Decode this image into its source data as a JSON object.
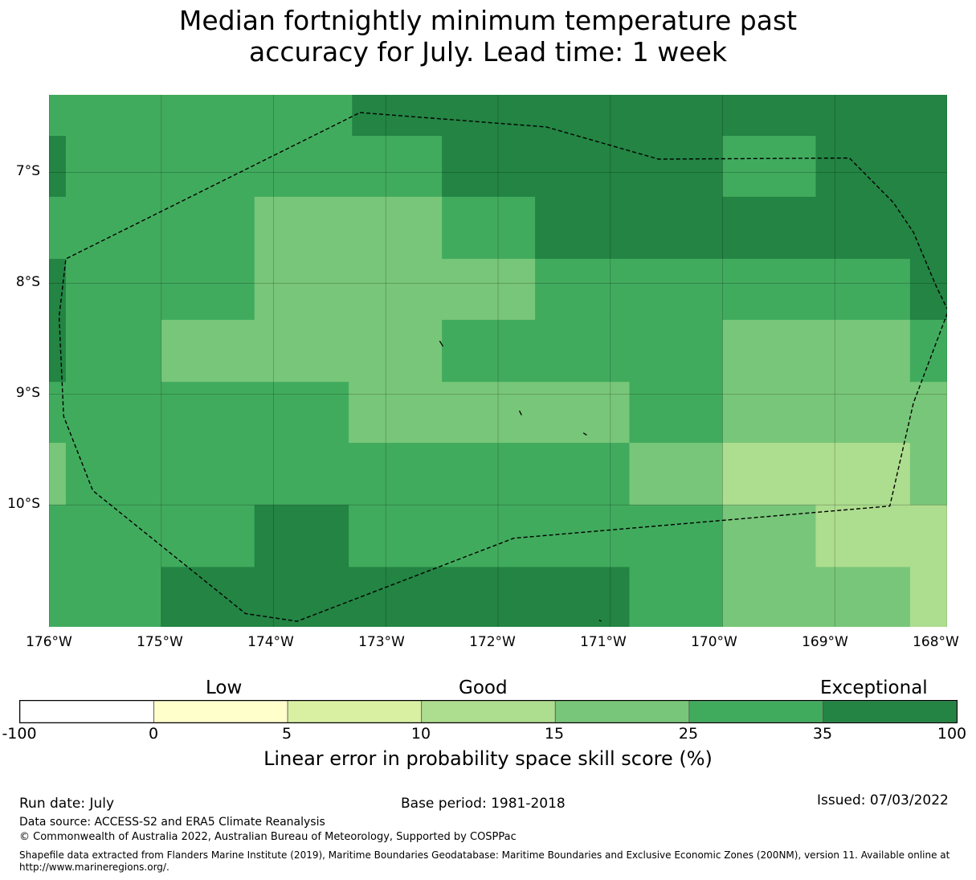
{
  "title_lines": [
    "Median fortnightly minimum temperature past",
    "accuracy for July. Lead time: 1 week"
  ],
  "map": {
    "lat_ticks": [
      {
        "value": -7,
        "label": "7°S"
      },
      {
        "value": -8,
        "label": "8°S"
      },
      {
        "value": -9,
        "label": "9°S"
      },
      {
        "value": -10,
        "label": "10°S"
      }
    ],
    "lon_ticks": [
      {
        "value": -176,
        "label": "176°W"
      },
      {
        "value": -175,
        "label": "175°W"
      },
      {
        "value": -174,
        "label": "174°W"
      },
      {
        "value": -173,
        "label": "173°W"
      },
      {
        "value": -172,
        "label": "172°W"
      },
      {
        "value": -171,
        "label": "171°W"
      },
      {
        "value": -170,
        "label": "170°W"
      },
      {
        "value": -169,
        "label": "169°W"
      },
      {
        "value": -168,
        "label": "168°W"
      }
    ],
    "lon_range": [
      -176,
      -168
    ],
    "lat_range": [
      -11.1,
      -6.3
    ],
    "grid": true,
    "boundary_style": "dashed",
    "cells": [
      {
        "lon": [
          -176,
          -173.3
        ],
        "lat": [
          -6.3,
          -6.67
        ],
        "cat": 5
      },
      {
        "lon": [
          -173.3,
          -176
        ],
        "lat": [
          -6.3,
          -6.3
        ],
        "cat": 5
      },
      {
        "lon": [
          -173.3,
          -168
        ],
        "lat": [
          -6.3,
          -6.67
        ],
        "cat": 6
      },
      {
        "lon": [
          -176,
          -175.85
        ],
        "lat": [
          -6.67,
          -7.22
        ],
        "cat": 6
      },
      {
        "lon": [
          -175.85,
          -172.5
        ],
        "lat": [
          -6.67,
          -7.22
        ],
        "cat": 5
      },
      {
        "lon": [
          -172.5,
          -170
        ],
        "lat": [
          -6.67,
          -7.22
        ],
        "cat": 6
      },
      {
        "lon": [
          -170,
          -169.17
        ],
        "lat": [
          -6.67,
          -7.22
        ],
        "cat": 5
      },
      {
        "lon": [
          -169.17,
          -168
        ],
        "lat": [
          -6.67,
          -7.22
        ],
        "cat": 6
      },
      {
        "lon": [
          -176,
          -174.17
        ],
        "lat": [
          -7.22,
          -7.78
        ],
        "cat": 5
      },
      {
        "lon": [
          -174.17,
          -172.5
        ],
        "lat": [
          -7.22,
          -7.78
        ],
        "cat": 4
      },
      {
        "lon": [
          -172.5,
          -171.67
        ],
        "lat": [
          -7.22,
          -7.78
        ],
        "cat": 5
      },
      {
        "lon": [
          -171.67,
          -168
        ],
        "lat": [
          -7.22,
          -7.78
        ],
        "cat": 6
      },
      {
        "lon": [
          -176,
          -175.85
        ],
        "lat": [
          -7.78,
          -8.33
        ],
        "cat": 6
      },
      {
        "lon": [
          -175.85,
          -174.17
        ],
        "lat": [
          -7.78,
          -8.33
        ],
        "cat": 5
      },
      {
        "lon": [
          -174.17,
          -171.67
        ],
        "lat": [
          -7.78,
          -8.33
        ],
        "cat": 4
      },
      {
        "lon": [
          -171.67,
          -168.33
        ],
        "lat": [
          -7.78,
          -8.33
        ],
        "cat": 5
      },
      {
        "lon": [
          -168.33,
          -168
        ],
        "lat": [
          -7.78,
          -8.33
        ],
        "cat": 6
      },
      {
        "lon": [
          -176,
          -175.85
        ],
        "lat": [
          -8.33,
          -8.89
        ],
        "cat": 6
      },
      {
        "lon": [
          -175.85,
          -175
        ],
        "lat": [
          -8.33,
          -8.89
        ],
        "cat": 5
      },
      {
        "lon": [
          -175,
          -172.5
        ],
        "lat": [
          -8.33,
          -8.89
        ],
        "cat": 4
      },
      {
        "lon": [
          -172.5,
          -170
        ],
        "lat": [
          -8.33,
          -8.89
        ],
        "cat": 5
      },
      {
        "lon": [
          -170,
          -168.33
        ],
        "lat": [
          -8.33,
          -8.89
        ],
        "cat": 4
      },
      {
        "lon": [
          -168.33,
          -168
        ],
        "lat": [
          -8.33,
          -8.89
        ],
        "cat": 5
      },
      {
        "lon": [
          -176,
          -173.33
        ],
        "lat": [
          -8.89,
          -9.44
        ],
        "cat": 5
      },
      {
        "lon": [
          -173.33,
          -170.83
        ],
        "lat": [
          -8.89,
          -9.44
        ],
        "cat": 4
      },
      {
        "lon": [
          -170.83,
          -170
        ],
        "lat": [
          -8.89,
          -9.44
        ],
        "cat": 5
      },
      {
        "lon": [
          -170,
          -168
        ],
        "lat": [
          -8.89,
          -9.44
        ],
        "cat": 4
      },
      {
        "lon": [
          -176,
          -175.85
        ],
        "lat": [
          -9.44,
          -10
        ],
        "cat": 4
      },
      {
        "lon": [
          -175.85,
          -170.83
        ],
        "lat": [
          -9.44,
          -10
        ],
        "cat": 5
      },
      {
        "lon": [
          -170.83,
          -170
        ],
        "lat": [
          -9.44,
          -10
        ],
        "cat": 4
      },
      {
        "lon": [
          -170,
          -168.33
        ],
        "lat": [
          -9.44,
          -10
        ],
        "cat": 3
      },
      {
        "lon": [
          -168.33,
          -168
        ],
        "lat": [
          -9.44,
          -10
        ],
        "cat": 4
      },
      {
        "lon": [
          -176,
          -174.17
        ],
        "lat": [
          -10,
          -10.56
        ],
        "cat": 5
      },
      {
        "lon": [
          -174.17,
          -173.33
        ],
        "lat": [
          -10,
          -10.56
        ],
        "cat": 6
      },
      {
        "lon": [
          -173.33,
          -170
        ],
        "lat": [
          -10,
          -10.56
        ],
        "cat": 5
      },
      {
        "lon": [
          -170,
          -169.17
        ],
        "lat": [
          -10,
          -10.56
        ],
        "cat": 4
      },
      {
        "lon": [
          -169.17,
          -168
        ],
        "lat": [
          -10,
          -10.56
        ],
        "cat": 3
      },
      {
        "lon": [
          -176,
          -175
        ],
        "lat": [
          -10.56,
          -11.1
        ],
        "cat": 5
      },
      {
        "lon": [
          -175,
          -170.83
        ],
        "lat": [
          -10.56,
          -11.1
        ],
        "cat": 6
      },
      {
        "lon": [
          -170.83,
          -170
        ],
        "lat": [
          -10.56,
          -11.1
        ],
        "cat": 5
      },
      {
        "lon": [
          -170,
          -168.33
        ],
        "lat": [
          -10.56,
          -11.1
        ],
        "cat": 4
      },
      {
        "lon": [
          -168.33,
          -168
        ],
        "lat": [
          -10.56,
          -11.1
        ],
        "cat": 3
      }
    ],
    "boundary": [
      [
        -173.23,
        -6.46
      ],
      [
        -171.57,
        -6.59
      ],
      [
        -170.57,
        -6.88
      ],
      [
        -168.87,
        -6.87
      ],
      [
        -168.48,
        -7.27
      ],
      [
        -168.3,
        -7.54
      ],
      [
        -168.1,
        -8.02
      ],
      [
        -167.99,
        -8.25
      ],
      [
        -168.3,
        -9.08
      ],
      [
        -168.51,
        -10.01
      ],
      [
        -171.86,
        -10.3
      ],
      [
        -173.79,
        -11.05
      ],
      [
        -174.25,
        -10.98
      ],
      [
        -175.61,
        -9.87
      ],
      [
        -175.87,
        -9.2
      ],
      [
        -175.91,
        -8.3
      ],
      [
        -175.85,
        -7.78
      ],
      [
        -173.23,
        -6.46
      ]
    ],
    "islands": [
      [
        [
          -172.52,
          -8.52
        ],
        [
          -172.49,
          -8.57
        ]
      ],
      [
        [
          -171.81,
          -9.15
        ],
        [
          -171.79,
          -9.19
        ]
      ],
      [
        [
          -171.24,
          -9.35
        ],
        [
          -171.21,
          -9.37
        ]
      ],
      [
        [
          -171.1,
          -11.04
        ],
        [
          -171.08,
          -11.05
        ]
      ]
    ]
  },
  "colorbar": {
    "headings": [
      "Low",
      "Good",
      "Exceptional"
    ],
    "ticks": [
      "-100",
      "0",
      "5",
      "10",
      "15",
      "25",
      "35",
      "100"
    ],
    "colors": [
      "#ffffff",
      "#ffffcc",
      "#d9f0a3",
      "#addd8e",
      "#78c679",
      "#41ab5d",
      "#238443"
    ],
    "xlabel": "Linear error in probability space skill score (%)"
  },
  "footer": {
    "run_date": "Run date: July",
    "base_period": "Base period: 1981-2018",
    "issued": "Issued: 07/03/2022",
    "data_source": "Data source: ACCESS-S2 and ERA5 Climate Reanalysis",
    "copyright": "© Commonwealth of Australia 2022, Australian Bureau of Meteorology, Supported by COSPPac",
    "shapefile_line1": "Shapefile data extracted from Flanders Marine Institute (2019), Maritime Boundaries Geodatabase: Maritime Boundaries and Exclusive Economic Zones (200NM), version 11. Available online at",
    "shapefile_line2": "http://www.marineregions.org/."
  }
}
